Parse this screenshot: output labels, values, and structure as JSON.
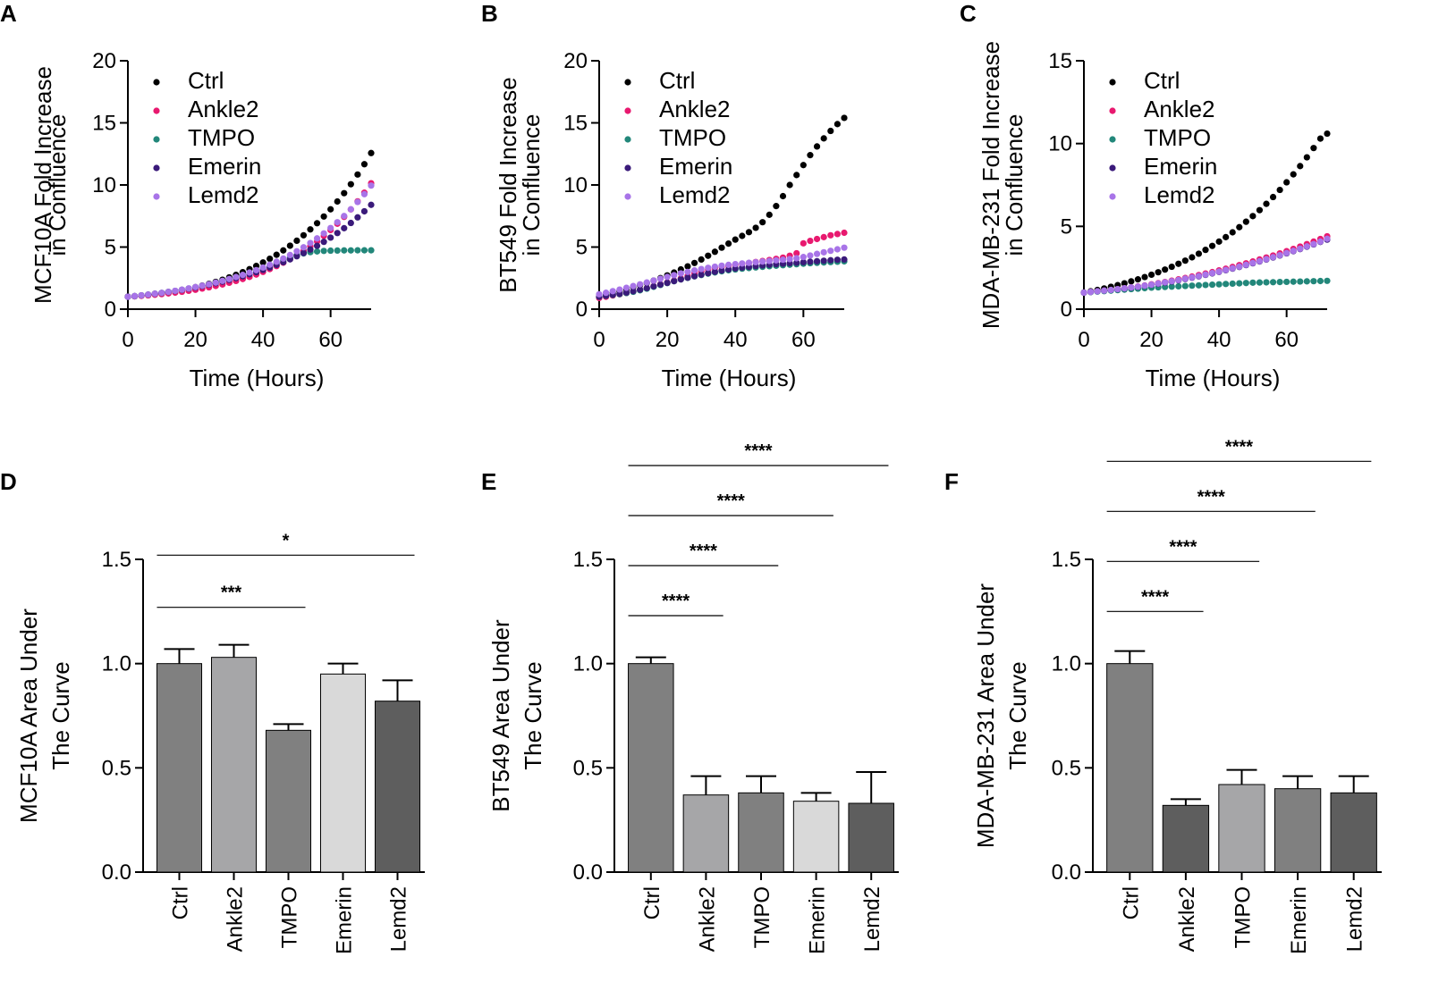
{
  "chart_data": [
    {
      "panel": "A",
      "type": "scatter",
      "ylabel_lines": [
        "MCF10A Fold  Increase",
        "in Confluence"
      ],
      "xlabel": "Time  (Hours)",
      "xlim": [
        0,
        72
      ],
      "ylim": [
        0,
        20
      ],
      "xticks": [
        "0",
        "20",
        "40",
        "60"
      ],
      "xtick_values": [
        0,
        20,
        40,
        60
      ],
      "yticks": [
        "0",
        "5",
        "10",
        "15",
        "20"
      ],
      "ytick_values": [
        0,
        5,
        10,
        15,
        20
      ],
      "x": [
        0,
        2,
        4,
        6,
        8,
        10,
        12,
        14,
        16,
        18,
        20,
        22,
        24,
        26,
        28,
        30,
        32,
        34,
        36,
        38,
        40,
        42,
        44,
        46,
        48,
        50,
        52,
        54,
        56,
        58,
        60,
        62,
        64,
        66,
        68,
        70,
        72
      ],
      "series": [
        {
          "name": "Ctrl",
          "color": "#000000",
          "values": [
            1.0,
            1.04,
            1.09,
            1.14,
            1.2,
            1.27,
            1.35,
            1.44,
            1.54,
            1.65,
            1.77,
            1.9,
            2.04,
            2.2,
            2.37,
            2.56,
            2.76,
            2.98,
            3.22,
            3.48,
            3.76,
            4.06,
            4.38,
            4.73,
            5.11,
            5.51,
            5.95,
            6.42,
            6.92,
            7.46,
            8.04,
            8.67,
            9.34,
            10.06,
            10.84,
            11.67,
            12.57
          ]
        },
        {
          "name": "Ankle2",
          "color": "#e8196f",
          "values": [
            1.0,
            1.03,
            1.07,
            1.11,
            1.16,
            1.21,
            1.27,
            1.33,
            1.4,
            1.48,
            1.56,
            1.66,
            1.76,
            1.87,
            1.99,
            2.13,
            2.27,
            2.43,
            2.6,
            2.79,
            3.0,
            3.23,
            3.47,
            3.74,
            4.03,
            4.35,
            4.69,
            5.06,
            5.46,
            5.9,
            6.37,
            6.88,
            7.43,
            8.03,
            8.68,
            9.38,
            10.14
          ]
        },
        {
          "name": "TMPO",
          "color": "#22877a",
          "values": [
            1.0,
            1.05,
            1.11,
            1.17,
            1.24,
            1.31,
            1.39,
            1.47,
            1.56,
            1.66,
            1.76,
            1.87,
            1.99,
            2.12,
            2.25,
            2.4,
            2.56,
            2.72,
            2.9,
            3.09,
            3.29,
            3.5,
            3.72,
            3.94,
            4.15,
            4.34,
            4.49,
            4.59,
            4.65,
            4.69,
            4.71,
            4.72,
            4.73,
            4.73,
            4.74,
            4.74,
            4.74
          ]
        },
        {
          "name": "Emerin",
          "color": "#3a1a7a",
          "values": [
            1.0,
            1.05,
            1.11,
            1.17,
            1.24,
            1.31,
            1.39,
            1.47,
            1.56,
            1.65,
            1.75,
            1.86,
            1.97,
            2.09,
            2.22,
            2.36,
            2.5,
            2.65,
            2.81,
            2.98,
            3.16,
            3.36,
            3.56,
            3.78,
            4.01,
            4.26,
            4.52,
            4.8,
            5.1,
            5.42,
            5.76,
            6.13,
            6.52,
            6.94,
            7.39,
            7.88,
            8.4
          ]
        },
        {
          "name": "Lemd2",
          "color": "#a874e8",
          "values": [
            1.0,
            1.05,
            1.11,
            1.17,
            1.24,
            1.31,
            1.39,
            1.48,
            1.57,
            1.67,
            1.78,
            1.89,
            2.01,
            2.14,
            2.28,
            2.43,
            2.59,
            2.76,
            2.95,
            3.14,
            3.35,
            3.58,
            3.82,
            4.08,
            4.36,
            4.66,
            4.98,
            5.33,
            5.7,
            6.1,
            6.53,
            7.0,
            7.5,
            8.04,
            8.63,
            9.26,
            9.95
          ]
        }
      ]
    },
    {
      "panel": "B",
      "type": "scatter",
      "ylabel_lines": [
        "BT549 Fold  Increase",
        "in Confluence"
      ],
      "xlabel": "Time  (Hours)",
      "xlim": [
        0,
        72
      ],
      "ylim": [
        0,
        20
      ],
      "xticks": [
        "0",
        "20",
        "40",
        "60"
      ],
      "xtick_values": [
        0,
        20,
        40,
        60
      ],
      "yticks": [
        "0",
        "5",
        "10",
        "15",
        "20"
      ],
      "ytick_values": [
        0,
        5,
        10,
        15,
        20
      ],
      "x": [
        0,
        2,
        4,
        6,
        8,
        10,
        12,
        14,
        16,
        18,
        20,
        22,
        24,
        26,
        28,
        30,
        32,
        34,
        36,
        38,
        40,
        42,
        44,
        46,
        48,
        50,
        52,
        54,
        56,
        58,
        60,
        62,
        64,
        66,
        68,
        70,
        72
      ],
      "series": [
        {
          "name": "Ctrl",
          "color": "#000000",
          "values": [
            1.0,
            1.15,
            1.3,
            1.45,
            1.6,
            1.78,
            1.95,
            2.12,
            2.3,
            2.5,
            2.72,
            2.95,
            3.2,
            3.45,
            3.72,
            4.0,
            4.3,
            4.62,
            4.95,
            5.28,
            5.6,
            5.9,
            6.2,
            6.55,
            7.0,
            7.6,
            8.3,
            9.1,
            10.0,
            10.8,
            11.6,
            12.4,
            13.1,
            13.75,
            14.35,
            14.9,
            15.4
          ]
        },
        {
          "name": "Ankle2",
          "color": "#e8196f",
          "values": [
            0.9,
            1.0,
            1.1,
            1.2,
            1.3,
            1.42,
            1.55,
            1.7,
            1.85,
            2.0,
            2.15,
            2.3,
            2.48,
            2.68,
            2.88,
            3.05,
            3.2,
            3.32,
            3.42,
            3.5,
            3.58,
            3.65,
            3.72,
            3.8,
            3.88,
            3.96,
            4.05,
            4.15,
            4.3,
            4.5,
            5.3,
            5.5,
            5.65,
            5.8,
            5.95,
            6.05,
            6.15
          ]
        },
        {
          "name": "TMPO",
          "color": "#22877a",
          "values": [
            1.0,
            1.07,
            1.14,
            1.21,
            1.3,
            1.4,
            1.52,
            1.65,
            1.8,
            1.95,
            2.1,
            2.25,
            2.4,
            2.52,
            2.64,
            2.75,
            2.86,
            2.96,
            3.05,
            3.13,
            3.2,
            3.26,
            3.31,
            3.36,
            3.41,
            3.46,
            3.5,
            3.54,
            3.58,
            3.62,
            3.66,
            3.7,
            3.73,
            3.76,
            3.79,
            3.82,
            3.85
          ]
        },
        {
          "name": "Emerin",
          "color": "#3a1a7a",
          "values": [
            1.0,
            1.08,
            1.16,
            1.24,
            1.34,
            1.45,
            1.57,
            1.7,
            1.84,
            1.98,
            2.12,
            2.26,
            2.4,
            2.53,
            2.66,
            2.78,
            2.9,
            3.01,
            3.11,
            3.2,
            3.28,
            3.35,
            3.41,
            3.47,
            3.52,
            3.57,
            3.62,
            3.66,
            3.7,
            3.74,
            3.78,
            3.82,
            3.86,
            3.9,
            3.94,
            3.98,
            4.0
          ]
        },
        {
          "name": "Lemd2",
          "color": "#a874e8",
          "values": [
            1.2,
            1.32,
            1.45,
            1.58,
            1.72,
            1.86,
            2.0,
            2.15,
            2.3,
            2.45,
            2.6,
            2.74,
            2.88,
            3.0,
            3.12,
            3.23,
            3.33,
            3.42,
            3.5,
            3.57,
            3.63,
            3.68,
            3.73,
            3.78,
            3.83,
            3.88,
            3.93,
            3.98,
            4.03,
            4.1,
            4.2,
            4.32,
            4.45,
            4.58,
            4.7,
            4.82,
            4.95
          ]
        }
      ]
    },
    {
      "panel": "C",
      "type": "scatter",
      "ylabel_lines": [
        "MDA-MB-231 Fold  Increase",
        "in Confluence"
      ],
      "xlabel": "Time  (Hours)",
      "xlim": [
        0,
        72
      ],
      "ylim": [
        0,
        15
      ],
      "xticks": [
        "0",
        "20",
        "40",
        "60"
      ],
      "xtick_values": [
        0,
        20,
        40,
        60
      ],
      "yticks": [
        "0",
        "5",
        "10",
        "15"
      ],
      "ytick_values": [
        0,
        5,
        10,
        15
      ],
      "x": [
        0,
        2,
        4,
        6,
        8,
        10,
        12,
        14,
        16,
        18,
        20,
        22,
        24,
        26,
        28,
        30,
        32,
        34,
        36,
        38,
        40,
        42,
        44,
        46,
        48,
        50,
        52,
        54,
        56,
        58,
        60,
        62,
        64,
        66,
        68,
        70,
        72
      ],
      "series": [
        {
          "name": "Ctrl",
          "color": "#000000",
          "values": [
            1.0,
            1.08,
            1.16,
            1.25,
            1.35,
            1.45,
            1.56,
            1.68,
            1.8,
            1.94,
            2.08,
            2.23,
            2.39,
            2.56,
            2.74,
            2.93,
            3.13,
            3.35,
            3.58,
            3.82,
            4.08,
            4.35,
            4.64,
            4.95,
            5.28,
            5.62,
            5.98,
            6.36,
            6.77,
            7.2,
            7.66,
            8.14,
            8.64,
            9.17,
            9.73,
            10.3,
            10.6
          ]
        },
        {
          "name": "Ankle2",
          "color": "#e8196f",
          "values": [
            1.0,
            1.04,
            1.08,
            1.12,
            1.16,
            1.21,
            1.26,
            1.31,
            1.37,
            1.43,
            1.5,
            1.57,
            1.64,
            1.72,
            1.8,
            1.88,
            1.97,
            2.06,
            2.15,
            2.24,
            2.34,
            2.44,
            2.55,
            2.66,
            2.77,
            2.88,
            3.0,
            3.12,
            3.24,
            3.37,
            3.5,
            3.64,
            3.78,
            3.93,
            4.08,
            4.24,
            4.4
          ]
        },
        {
          "name": "TMPO",
          "color": "#22877a",
          "values": [
            1.0,
            1.03,
            1.06,
            1.09,
            1.12,
            1.15,
            1.18,
            1.21,
            1.24,
            1.27,
            1.3,
            1.32,
            1.34,
            1.36,
            1.38,
            1.4,
            1.42,
            1.44,
            1.46,
            1.48,
            1.5,
            1.52,
            1.54,
            1.56,
            1.58,
            1.6,
            1.61,
            1.62,
            1.63,
            1.64,
            1.65,
            1.66,
            1.67,
            1.68,
            1.69,
            1.7,
            1.71
          ]
        },
        {
          "name": "Emerin",
          "color": "#3a1a7a",
          "values": [
            1.0,
            1.04,
            1.08,
            1.12,
            1.16,
            1.2,
            1.25,
            1.3,
            1.35,
            1.41,
            1.47,
            1.53,
            1.6,
            1.67,
            1.74,
            1.82,
            1.9,
            1.98,
            2.07,
            2.16,
            2.25,
            2.35,
            2.45,
            2.55,
            2.66,
            2.77,
            2.88,
            3.0,
            3.12,
            3.24,
            3.37,
            3.5,
            3.63,
            3.77,
            3.91,
            4.06,
            4.2
          ]
        },
        {
          "name": "Lemd2",
          "color": "#a874e8",
          "values": [
            1.0,
            1.04,
            1.08,
            1.12,
            1.16,
            1.21,
            1.26,
            1.31,
            1.36,
            1.42,
            1.48,
            1.55,
            1.62,
            1.69,
            1.76,
            1.84,
            1.92,
            2.0,
            2.09,
            2.18,
            2.27,
            2.37,
            2.47,
            2.57,
            2.68,
            2.79,
            2.9,
            3.02,
            3.14,
            3.26,
            3.39,
            3.52,
            3.65,
            3.79,
            3.93,
            4.08,
            4.25
          ]
        }
      ]
    },
    {
      "panel": "D",
      "type": "bar",
      "ylabel_lines": [
        "MCF10A Area Under",
        "The Curve"
      ],
      "categories": [
        "Ctrl",
        "Ankle2",
        "TMPO",
        "Emerin",
        "Lemd2"
      ],
      "values": [
        1.0,
        1.03,
        0.68,
        0.95,
        0.82
      ],
      "errors": [
        0.07,
        0.06,
        0.03,
        0.05,
        0.1
      ],
      "bar_colors": [
        "#808080",
        "#a6a6a8",
        "#808080",
        "#d9d9d9",
        "#5e5e5e"
      ],
      "ylim": [
        0,
        1.5
      ],
      "yticks": [
        "0.0",
        "0.5",
        "1.0",
        "1.5"
      ],
      "ytick_values": [
        0,
        0.5,
        1.0,
        1.5
      ],
      "significance": [
        {
          "from": 0,
          "to": 4,
          "label": "*",
          "level": 1.52
        },
        {
          "from": 0,
          "to": 2,
          "label": "***",
          "level": 1.27
        }
      ]
    },
    {
      "panel": "E",
      "type": "bar",
      "ylabel_lines": [
        "BT549 Area Under",
        "The Curve"
      ],
      "categories": [
        "Ctrl",
        "Ankle2",
        "TMPO",
        "Emerin",
        "Lemd2"
      ],
      "values": [
        1.0,
        0.37,
        0.38,
        0.34,
        0.33
      ],
      "errors": [
        0.03,
        0.09,
        0.08,
        0.04,
        0.15
      ],
      "bar_colors": [
        "#808080",
        "#a6a6a8",
        "#808080",
        "#d9d9d9",
        "#5e5e5e"
      ],
      "ylim": [
        0,
        1.5
      ],
      "yticks": [
        "0.0",
        "0.5",
        "1.0",
        "1.5"
      ],
      "ytick_values": [
        0,
        0.5,
        1.0,
        1.5
      ],
      "significance": [
        {
          "from": 0,
          "to": 4,
          "label": "****",
          "level": 1.95
        },
        {
          "from": 0,
          "to": 3,
          "label": "****",
          "level": 1.71
        },
        {
          "from": 0,
          "to": 2,
          "label": "****",
          "level": 1.47
        },
        {
          "from": 0,
          "to": 1,
          "label": "****",
          "level": 1.23
        }
      ]
    },
    {
      "panel": "F",
      "type": "bar",
      "ylabel_lines": [
        "MDA-MB-231 Area Under",
        "The Curve"
      ],
      "categories": [
        "Ctrl",
        "Ankle2",
        "TMPO",
        "Emerin",
        "Lemd2"
      ],
      "values": [
        1.0,
        0.32,
        0.42,
        0.4,
        0.38
      ],
      "errors": [
        0.06,
        0.03,
        0.07,
        0.06,
        0.08
      ],
      "bar_colors": [
        "#808080",
        "#5e5e5e",
        "#a6a6a8",
        "#808080",
        "#5e5e5e"
      ],
      "ylim": [
        0,
        1.5
      ],
      "yticks": [
        "0.0",
        "0.5",
        "1.0",
        "1.5"
      ],
      "ytick_values": [
        0,
        0.5,
        1.0,
        1.5
      ],
      "significance": [
        {
          "from": 0,
          "to": 4,
          "label": "****",
          "level": 1.97
        },
        {
          "from": 0,
          "to": 3,
          "label": "****",
          "level": 1.73
        },
        {
          "from": 0,
          "to": 2,
          "label": "****",
          "level": 1.49
        },
        {
          "from": 0,
          "to": 1,
          "label": "****",
          "level": 1.25
        }
      ]
    }
  ]
}
